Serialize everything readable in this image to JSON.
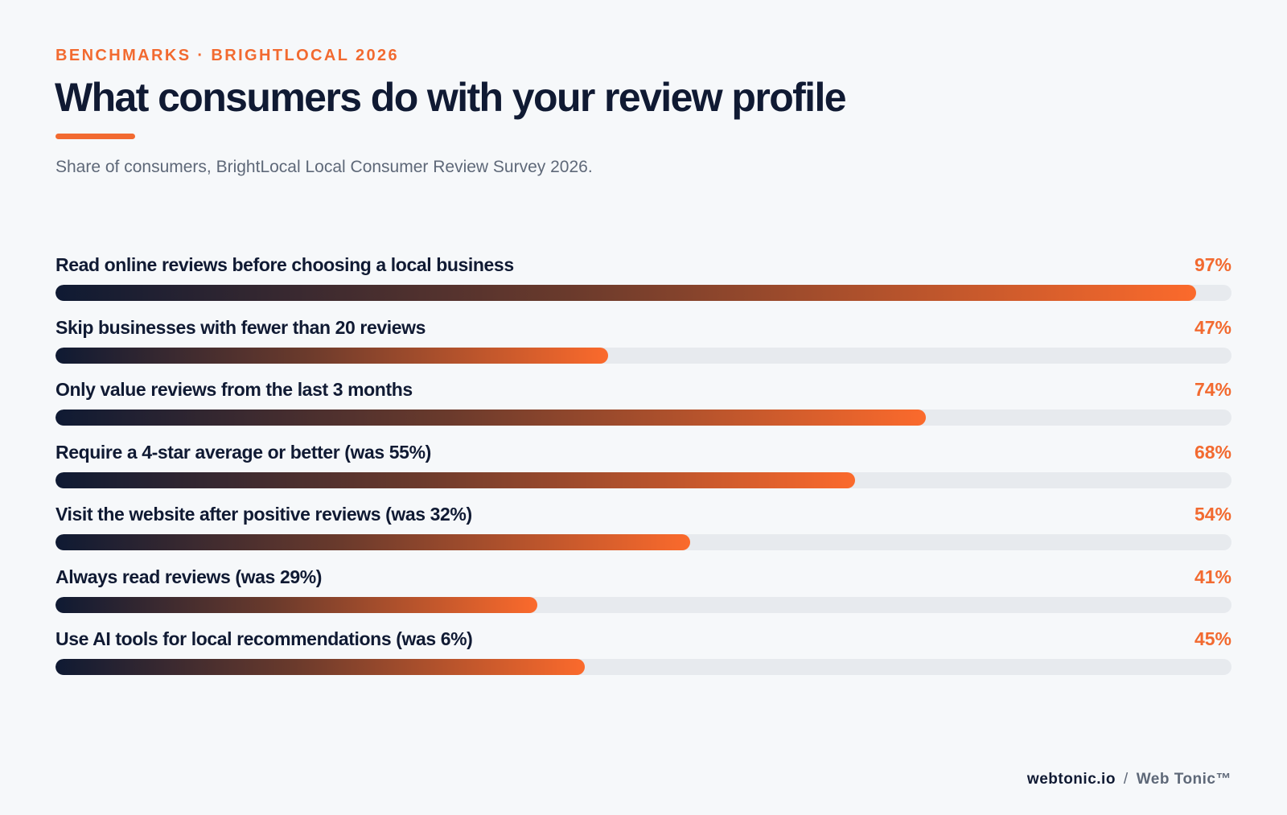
{
  "header": {
    "kicker": "BENCHMARKS · BRIGHTLOCAL 2026",
    "title": "What consumers do with your review profile",
    "subtitle": "Share of consumers, BrightLocal Local Consumer Review Survey 2026."
  },
  "colors": {
    "accent": "#f26a30",
    "navy": "#101a33",
    "track": "#e7eaee",
    "muted": "#5e6878"
  },
  "chart_data": {
    "type": "bar",
    "orientation": "horizontal",
    "unit": "%",
    "xlim": [
      0,
      100
    ],
    "categories": [
      "Read online reviews before choosing a local business",
      "Skip businesses with fewer than 20 reviews",
      "Only value reviews from the last 3 months",
      "Require a 4-star average or better (was 55%)",
      "Visit the website after positive reviews (was 32%)",
      "Always read reviews (was 29%)",
      "Use AI tools for local recommendations (was 6%)"
    ],
    "values": [
      97,
      47,
      74,
      68,
      54,
      41,
      45
    ],
    "value_labels": [
      "97%",
      "47%",
      "74%",
      "68%",
      "54%",
      "41%",
      "45%"
    ]
  },
  "footer": {
    "domain": "webtonic.io",
    "separator": "/",
    "brand": "Web Tonic™"
  }
}
